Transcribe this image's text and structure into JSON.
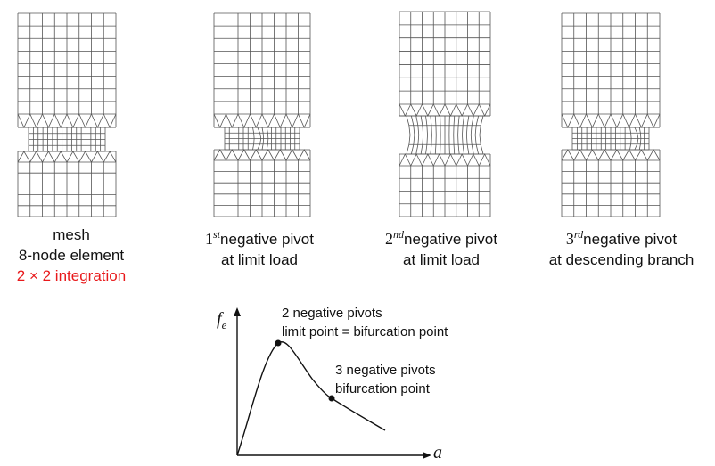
{
  "panels": [
    {
      "id": "mesh",
      "lines": [
        "mesh",
        "8-node element"
      ],
      "highlight_line": "2 × 2 integration",
      "highlight_color": "#e8191b"
    },
    {
      "id": "first-pivot",
      "ordinal_number": "1",
      "ordinal_suffix": "st",
      "line1_rest": "negative pivot",
      "line2": "at limit load"
    },
    {
      "id": "second-pivot",
      "ordinal_number": "2",
      "ordinal_suffix": "nd",
      "line1_rest": "negative pivot",
      "line2": "at limit load"
    },
    {
      "id": "third-pivot",
      "ordinal_number": "3",
      "ordinal_suffix": "rd",
      "line1_rest": "negative pivot",
      "line2": "at descending branch"
    }
  ],
  "curve": {
    "y_axis_symbol": "f",
    "y_axis_subscript": "e",
    "x_axis_symbol": "a",
    "point1": {
      "line1": "2 negative pivots",
      "line2": "limit point = bifurcation point"
    },
    "point2": {
      "line1": "3 negative pivots",
      "line2": "bifurcation point"
    }
  }
}
